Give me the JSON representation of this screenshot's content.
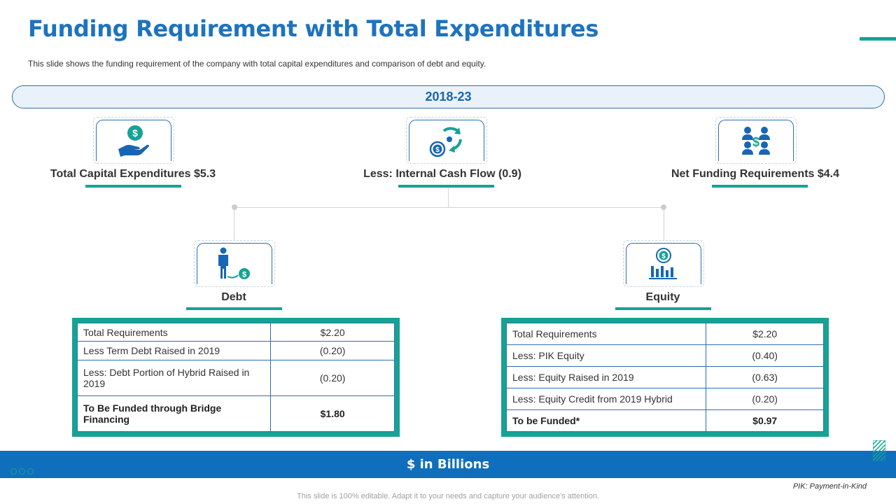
{
  "title": "Funding Requirement with Total Expenditures",
  "subtitle": "This slide shows the funding requirement  of the company with total capital expenditures and comparison of debt and equity.",
  "period": "2018-23",
  "top_items": [
    {
      "label": "Total Capital Expenditures $5.3",
      "icon": "hand-dollar-icon"
    },
    {
      "label": "Less: Internal Cash Flow (0.9)",
      "icon": "cash-flow-cycle-icon"
    },
    {
      "label": "Net Funding Requirements $4.4",
      "icon": "people-dollar-icon"
    }
  ],
  "debt": {
    "label": "Debt",
    "icon": "person-dollar-icon",
    "rows": [
      {
        "item": "Total Requirements",
        "value": "$2.20"
      },
      {
        "item": "Less Term Debt Raised in 2019",
        "value": "(0.20)"
      },
      {
        "item": "Less: Debt Portion of Hybrid Raised in 2019",
        "value": "(0.20)"
      },
      {
        "item": "To Be Funded through Bridge Financing",
        "value": "$1.80"
      }
    ]
  },
  "equity": {
    "label": "Equity",
    "icon": "dollar-bar-chart-icon",
    "rows": [
      {
        "item": "Total Requirements",
        "value": "$2.20"
      },
      {
        "item": "Less: PIK Equity",
        "value": "(0.40)"
      },
      {
        "item": "Less: Equity Raised in 2019",
        "value": "(0.63)"
      },
      {
        "item": "Less: Equity Credit from 2019 Hybrid",
        "value": "(0.20)"
      },
      {
        "item": "To be Funded*",
        "value": "$0.97"
      }
    ]
  },
  "units_banner": "$ in Billions",
  "footnote": "PIK: Payment-in-Kind",
  "editable_note": "This slide is 100% editable. Adapt it to your needs and capture your audience's attention.",
  "colors": {
    "heading": "#1e73be",
    "accent": "#17a294",
    "banner": "#0f6fbd",
    "border": "#2d6fb0"
  }
}
